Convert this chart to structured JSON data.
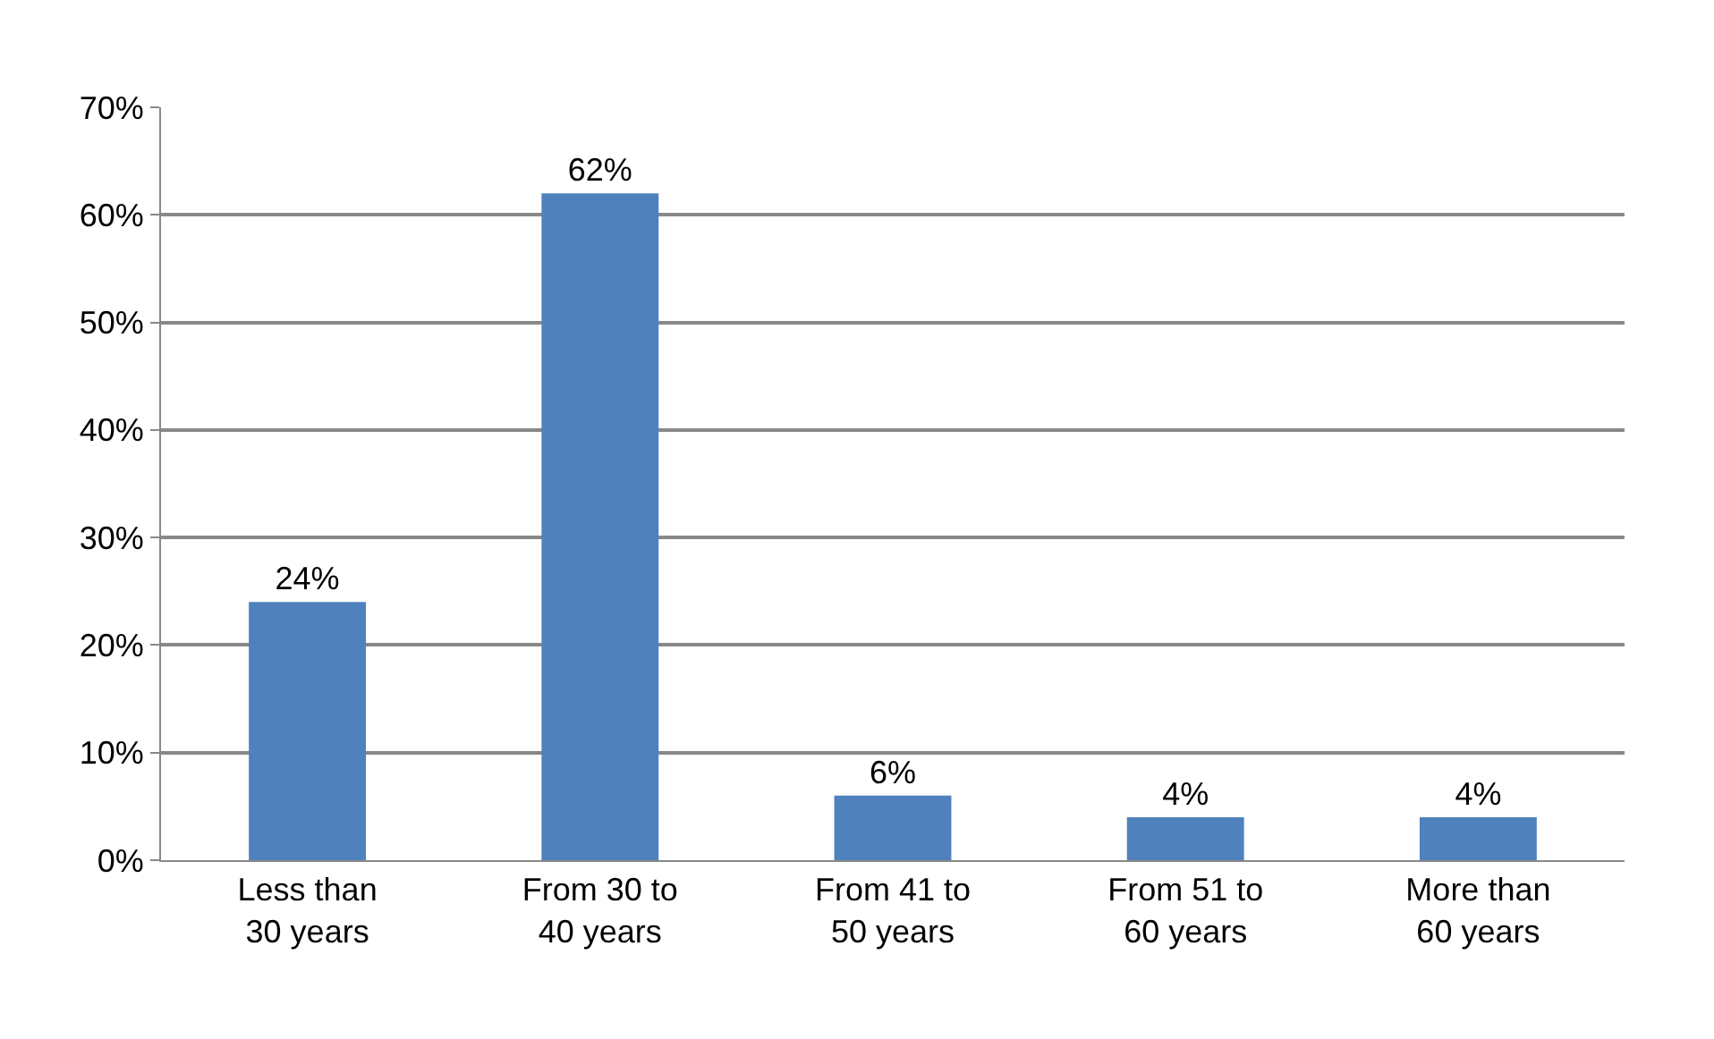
{
  "chart_data": {
    "type": "bar",
    "categories": [
      "Less than 30 years",
      "From 30 to 40 years",
      "From 41 to 50 years",
      "From 51 to 60 years",
      "More than 60 years"
    ],
    "values": [
      24,
      62,
      6,
      4,
      4
    ],
    "value_labels": [
      "24%",
      "62%",
      "6%",
      "4%",
      "4%"
    ],
    "color": "#4f81bd",
    "ylim": [
      0,
      70
    ],
    "yticks": [
      {
        "value": 0,
        "label": "0%"
      },
      {
        "value": 10,
        "label": "10%"
      },
      {
        "value": 20,
        "label": "20%"
      },
      {
        "value": 30,
        "label": "30%"
      },
      {
        "value": 40,
        "label": "40%"
      },
      {
        "value": 50,
        "label": "50%"
      },
      {
        "value": 60,
        "label": "60%"
      },
      {
        "value": 70,
        "label": "70%"
      }
    ],
    "grid": "y"
  }
}
